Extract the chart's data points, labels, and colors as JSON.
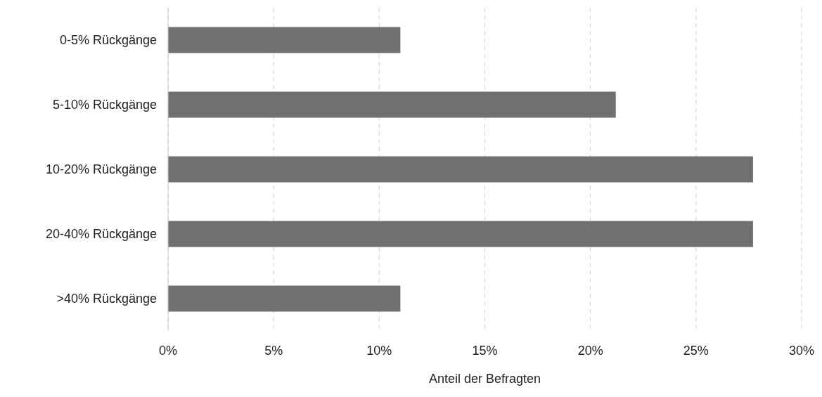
{
  "chart_data": {
    "type": "bar",
    "orientation": "horizontal",
    "xlabel": "Anteil der Befragten",
    "categories": [
      "0-5% Rückgänge",
      "5-10% Rückgänge",
      "10-20% Rückgänge",
      "20-40% Rückgänge",
      ">40% Rückgänge"
    ],
    "values": [
      11,
      21.2,
      27.7,
      27.7,
      11
    ],
    "color": "#6f7072",
    "xlim": [
      0,
      30
    ],
    "xticks": [
      {
        "value": 0,
        "label": "0%"
      },
      {
        "value": 5,
        "label": "5%"
      },
      {
        "value": 10,
        "label": "10%"
      },
      {
        "value": 15,
        "label": "15%"
      },
      {
        "value": 20,
        "label": "20%"
      },
      {
        "value": 25,
        "label": "25%"
      },
      {
        "value": 30,
        "label": "30%"
      }
    ],
    "grid": "x"
  }
}
